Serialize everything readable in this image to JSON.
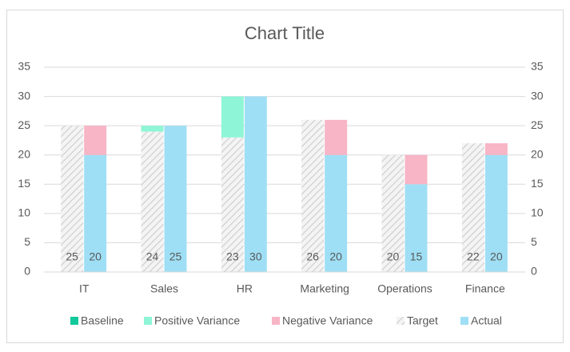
{
  "chart_data": {
    "type": "variance-bar",
    "title": "Chart Title",
    "categories": [
      "IT",
      "Sales",
      "HR",
      "Marketing",
      "Operations",
      "Finance"
    ],
    "series": [
      {
        "name": "Baseline",
        "color": "#11c99a",
        "values": [
          0,
          0,
          0,
          0,
          0,
          0
        ]
      },
      {
        "name": "Positive Variance",
        "color": "#8ef5d6",
        "values": [
          0,
          1,
          7,
          0,
          0,
          0
        ]
      },
      {
        "name": "Negative Variance",
        "color": "#f7b5c6",
        "values": [
          5,
          0,
          0,
          6,
          5,
          2
        ]
      },
      {
        "name": "Target",
        "color": "#d9d9d9",
        "values": [
          25,
          24,
          23,
          26,
          20,
          22
        ]
      },
      {
        "name": "Actual",
        "color": "#9fdff5",
        "values": [
          20,
          25,
          30,
          20,
          15,
          20
        ]
      }
    ],
    "ylim": [
      0,
      35
    ],
    "yticks": [
      0,
      5,
      10,
      15,
      20,
      25,
      30,
      35
    ],
    "y2lim": [
      0,
      35
    ],
    "y2ticks": [
      0,
      5,
      10,
      15,
      20,
      25,
      30,
      35
    ],
    "grid": true,
    "legend": "bottom"
  }
}
